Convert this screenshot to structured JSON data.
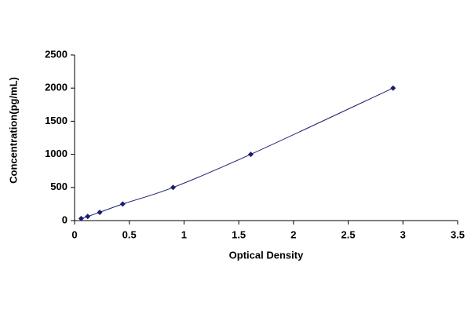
{
  "chart_data": {
    "type": "scatter",
    "x_label": "Optical Density",
    "y_label": "Concentration(pg/mL)",
    "x": [
      0.06,
      0.12,
      0.23,
      0.44,
      0.9,
      1.61,
      2.91
    ],
    "values": [
      31.25,
      62.5,
      125,
      250,
      500,
      1000,
      2000
    ],
    "color": "#1c1c6e",
    "xlim": [
      0,
      3.5
    ],
    "xticks": [
      0,
      0.5,
      1,
      1.5,
      2,
      2.5,
      3,
      3.5
    ],
    "ylim": [
      0,
      2500
    ],
    "yticks": [
      0,
      500,
      1000,
      1500,
      2000,
      2500
    ],
    "grid": false
  }
}
